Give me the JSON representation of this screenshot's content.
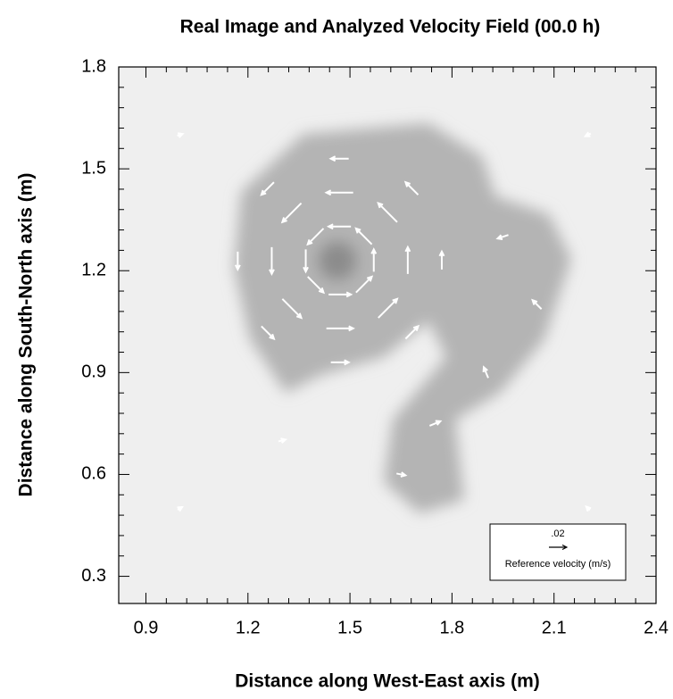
{
  "chart_data": {
    "type": "vector",
    "title": "Real Image and Analyzed Velocity Field (00.0 h)",
    "x_label": "Distance along West-East axis (m)",
    "y_label": "Distance along South-North axis (m)",
    "xlim": [
      0.82,
      2.4
    ],
    "ylim": [
      0.22,
      1.8
    ],
    "xticks": [
      0.9,
      1.2,
      1.5,
      1.8,
      2.1,
      2.4
    ],
    "yticks": [
      0.3,
      0.6,
      0.9,
      1.2,
      1.5,
      1.8
    ],
    "color": "#ffffff",
    "vectors": {
      "x": [
        1.57,
        1.541,
        1.47,
        1.399,
        1.37,
        1.399,
        1.47,
        1.541,
        1.67,
        1.611,
        1.47,
        1.329,
        1.27,
        1.329,
        1.47,
        1.611,
        1.77,
        1.682,
        1.47,
        1.258,
        1.17,
        1.258,
        1.47,
        1.682,
        1.9,
        1.75,
        1.65,
        2.05,
        1.95,
        1.0,
        1.0,
        2.2,
        2.2,
        1.3
      ],
      "y": [
        1.23,
        1.301,
        1.33,
        1.301,
        1.23,
        1.159,
        1.13,
        1.159,
        1.23,
        1.371,
        1.43,
        1.371,
        1.23,
        1.089,
        1.03,
        1.089,
        1.23,
        1.442,
        1.53,
        1.442,
        1.23,
        1.018,
        0.93,
        1.018,
        0.9,
        0.75,
        0.6,
        1.1,
        1.3,
        1.6,
        0.5,
        0.5,
        1.6,
        0.7
      ],
      "u": [
        0,
        -0.0177,
        -0.025,
        -0.0177,
        0,
        0.0177,
        0.025,
        0.0177,
        0,
        -0.0212,
        -0.03,
        -0.0212,
        0,
        0.0212,
        0.03,
        0.0212,
        0,
        -0.0141,
        -0.02,
        -0.0141,
        0,
        0.0141,
        0.02,
        0.0141,
        -0.005,
        0.012,
        0.01,
        -0.01,
        -0.012,
        0.006,
        0.005,
        -0.004,
        -0.006,
        0.008
      ],
      "v": [
        0.025,
        0.0177,
        0,
        -0.0177,
        -0.025,
        -0.0177,
        0,
        0.0177,
        0.03,
        0.0212,
        0,
        -0.0212,
        -0.03,
        -0.0212,
        0,
        0.0212,
        0.02,
        0.0141,
        0,
        -0.0141,
        -0.02,
        -0.0141,
        0,
        0.0141,
        0.012,
        0.005,
        -0.002,
        0.01,
        -0.004,
        0.002,
        0.003,
        0.004,
        -0.003,
        0.002
      ]
    },
    "reference": {
      "value": 0.02,
      "label": ".02",
      "text": "Reference velocity (m/s)"
    }
  }
}
